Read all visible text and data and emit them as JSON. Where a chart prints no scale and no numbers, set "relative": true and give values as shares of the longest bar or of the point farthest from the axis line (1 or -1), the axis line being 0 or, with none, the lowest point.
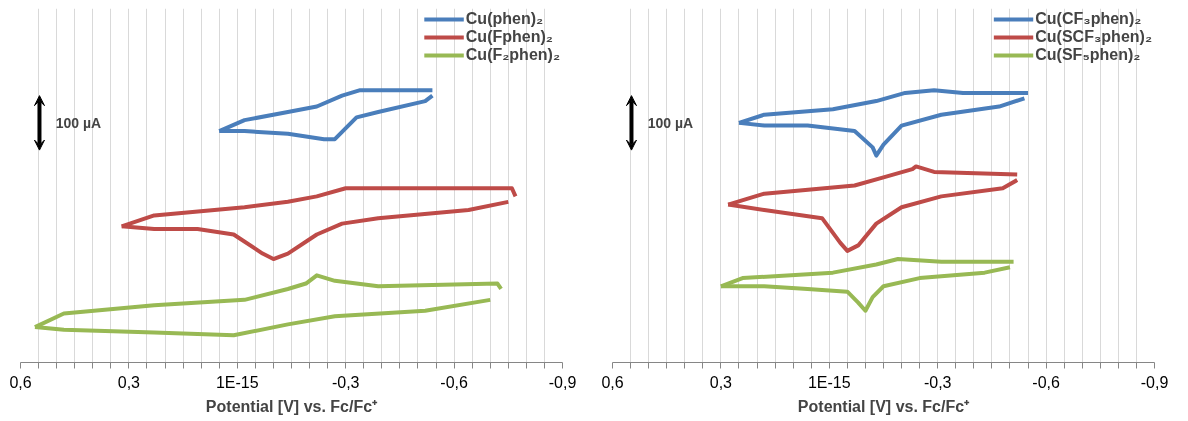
{
  "chart_data": [
    {
      "type": "line",
      "relative": true,
      "xlabel": "Potential [V] vs. Fc/Fc⁺",
      "xlim": [
        0.6,
        -0.9
      ],
      "xticks": [
        {
          "value": 0.6,
          "label": "0,6"
        },
        {
          "value": 0.55,
          "label": null
        },
        {
          "value": 0.5,
          "label": null
        },
        {
          "value": 0.45,
          "label": null
        },
        {
          "value": 0.4,
          "label": null
        },
        {
          "value": 0.35,
          "label": null
        },
        {
          "value": 0.3,
          "label": "0,3"
        },
        {
          "value": 0.25,
          "label": null
        },
        {
          "value": 0.2,
          "label": null
        },
        {
          "value": 0.15,
          "label": null
        },
        {
          "value": 0.1,
          "label": null
        },
        {
          "value": 0.05,
          "label": null
        },
        {
          "value": 0,
          "label": "1E-15"
        },
        {
          "value": -0.05,
          "label": null
        },
        {
          "value": -0.1,
          "label": null
        },
        {
          "value": -0.15,
          "label": null
        },
        {
          "value": -0.2,
          "label": null
        },
        {
          "value": -0.25,
          "label": null
        },
        {
          "value": -0.3,
          "label": "-0,3"
        },
        {
          "value": -0.35,
          "label": null
        },
        {
          "value": -0.4,
          "label": null
        },
        {
          "value": -0.45,
          "label": null
        },
        {
          "value": -0.5,
          "label": null
        },
        {
          "value": -0.55,
          "label": null
        },
        {
          "value": -0.6,
          "label": "-0,6"
        },
        {
          "value": -0.65,
          "label": null
        },
        {
          "value": -0.7,
          "label": null
        },
        {
          "value": -0.75,
          "label": null
        },
        {
          "value": -0.8,
          "label": null
        },
        {
          "value": -0.85,
          "label": null
        },
        {
          "value": -0.9,
          "label": "-0,9"
        }
      ],
      "grid": "x",
      "legend": "top right",
      "tick_labels": "x",
      "annotations": [
        "100 µA"
      ],
      "series": [
        {
          "name": "Cu(phen)₂",
          "color": "#4a7ebb",
          "x": [
            0.05,
            -0.02,
            -0.14,
            -0.22,
            -0.29,
            -0.34,
            -0.54
          ],
          "values": [
            0.85,
            0.89,
            0.92,
            0.94,
            0.98,
            1.0,
            1.0
          ]
        },
        {
          "color": "#4a7ebb",
          "x": [
            -0.54,
            -0.52,
            -0.39,
            -0.33,
            -0.27,
            -0.24,
            -0.14,
            -0.02,
            0.05
          ],
          "values": [
            0.98,
            0.96,
            0.92,
            0.9,
            0.82,
            0.82,
            0.84,
            0.85,
            0.85
          ]
        },
        {
          "name": "Cu(Fphen)₂",
          "color": "#be4b48",
          "x": [
            0.32,
            0.23,
            -0.02,
            -0.14,
            -0.22,
            -0.3,
            -0.35,
            -0.76,
            -0.77
          ],
          "values": [
            0.5,
            0.54,
            0.57,
            0.59,
            0.61,
            0.64,
            0.64,
            0.64,
            0.61
          ]
        },
        {
          "color": "#be4b48",
          "x": [
            -0.75,
            -0.64,
            -0.39,
            -0.29,
            -0.22,
            -0.14,
            -0.1,
            -0.07,
            0.01,
            0.11,
            0.23,
            0.32
          ],
          "values": [
            0.59,
            0.56,
            0.53,
            0.51,
            0.47,
            0.4,
            0.38,
            0.4,
            0.47,
            0.49,
            0.49,
            0.5
          ]
        },
        {
          "name": "Cu(F₂phen)₂",
          "color": "#98b954",
          "x": [
            0.56,
            0.48,
            0.23,
            -0.02,
            -0.14,
            -0.19,
            -0.22,
            -0.27,
            -0.39,
            -0.72,
            -0.73
          ],
          "values": [
            0.13,
            0.18,
            0.21,
            0.23,
            0.27,
            0.29,
            0.32,
            0.3,
            0.28,
            0.29,
            0.27
          ]
        },
        {
          "color": "#98b954",
          "x": [
            -0.7,
            -0.52,
            -0.27,
            -0.14,
            0.01,
            0.23,
            0.48,
            0.56
          ],
          "values": [
            0.23,
            0.19,
            0.17,
            0.14,
            0.1,
            0.11,
            0.12,
            0.13
          ]
        }
      ]
    },
    {
      "type": "line",
      "relative": true,
      "xlabel": "Potential [V] vs. Fc/Fc⁺",
      "xlim": [
        0.6,
        -0.9
      ],
      "xticks": [
        {
          "value": 0.6,
          "label": "0,6"
        },
        {
          "value": 0.55,
          "label": null
        },
        {
          "value": 0.5,
          "label": null
        },
        {
          "value": 0.45,
          "label": null
        },
        {
          "value": 0.4,
          "label": null
        },
        {
          "value": 0.35,
          "label": null
        },
        {
          "value": 0.3,
          "label": "0,3"
        },
        {
          "value": 0.25,
          "label": null
        },
        {
          "value": 0.2,
          "label": null
        },
        {
          "value": 0.15,
          "label": null
        },
        {
          "value": 0.1,
          "label": null
        },
        {
          "value": 0.05,
          "label": null
        },
        {
          "value": 0,
          "label": "1E-15"
        },
        {
          "value": -0.05,
          "label": null
        },
        {
          "value": -0.1,
          "label": null
        },
        {
          "value": -0.15,
          "label": null
        },
        {
          "value": -0.2,
          "label": null
        },
        {
          "value": -0.25,
          "label": null
        },
        {
          "value": -0.3,
          "label": "-0,3"
        },
        {
          "value": -0.35,
          "label": null
        },
        {
          "value": -0.4,
          "label": null
        },
        {
          "value": -0.45,
          "label": null
        },
        {
          "value": -0.5,
          "label": null
        },
        {
          "value": -0.55,
          "label": null
        },
        {
          "value": -0.6,
          "label": "-0,6"
        },
        {
          "value": -0.65,
          "label": null
        },
        {
          "value": -0.7,
          "label": null
        },
        {
          "value": -0.75,
          "label": null
        },
        {
          "value": -0.8,
          "label": null
        },
        {
          "value": -0.85,
          "label": null
        },
        {
          "value": -0.9,
          "label": "-0,9"
        }
      ],
      "grid": "x",
      "legend": "top right",
      "tick_labels": "x",
      "annotations": [
        "100 µA"
      ],
      "series": [
        {
          "name": "Cu(CF₃phen)₂",
          "color": "#4a7ebb",
          "x": [
            0.25,
            0.18,
            -0.01,
            -0.13,
            -0.21,
            -0.29,
            -0.37,
            -0.55
          ],
          "values": [
            0.88,
            0.91,
            0.93,
            0.96,
            0.99,
            1.0,
            0.99,
            0.99
          ]
        },
        {
          "color": "#4a7ebb",
          "x": [
            -0.54,
            -0.47,
            -0.31,
            -0.2,
            -0.15,
            -0.13,
            -0.12,
            -0.07,
            0.06,
            0.18,
            0.25
          ],
          "values": [
            0.97,
            0.94,
            0.91,
            0.87,
            0.8,
            0.76,
            0.79,
            0.85,
            0.87,
            0.87,
            0.88
          ]
        },
        {
          "name": "Cu(SCF₃phen)₂",
          "color": "#be4b48",
          "x": [
            0.28,
            0.18,
            -0.07,
            -0.15,
            -0.23,
            -0.24,
            -0.29,
            -0.52
          ],
          "values": [
            0.58,
            0.62,
            0.65,
            0.68,
            0.71,
            0.72,
            0.7,
            0.69
          ]
        },
        {
          "color": "#be4b48",
          "x": [
            -0.52,
            -0.48,
            -0.31,
            -0.2,
            -0.13,
            -0.08,
            -0.05,
            -0.03,
            0.02,
            0.18,
            0.28
          ],
          "values": [
            0.67,
            0.64,
            0.61,
            0.57,
            0.51,
            0.43,
            0.41,
            0.44,
            0.53,
            0.56,
            0.58
          ]
        },
        {
          "name": "Cu(SF₅phen)₂",
          "color": "#98b954",
          "x": [
            0.3,
            0.24,
            -0.01,
            -0.13,
            -0.19,
            -0.31,
            -0.51
          ],
          "values": [
            0.28,
            0.31,
            0.33,
            0.36,
            0.38,
            0.37,
            0.37
          ]
        },
        {
          "color": "#98b954",
          "x": [
            -0.5,
            -0.43,
            -0.25,
            -0.15,
            -0.12,
            -0.1,
            -0.08,
            -0.05,
            0.06,
            0.18,
            0.3
          ],
          "values": [
            0.35,
            0.33,
            0.31,
            0.28,
            0.24,
            0.19,
            0.22,
            0.26,
            0.27,
            0.28,
            0.28
          ]
        }
      ]
    }
  ]
}
